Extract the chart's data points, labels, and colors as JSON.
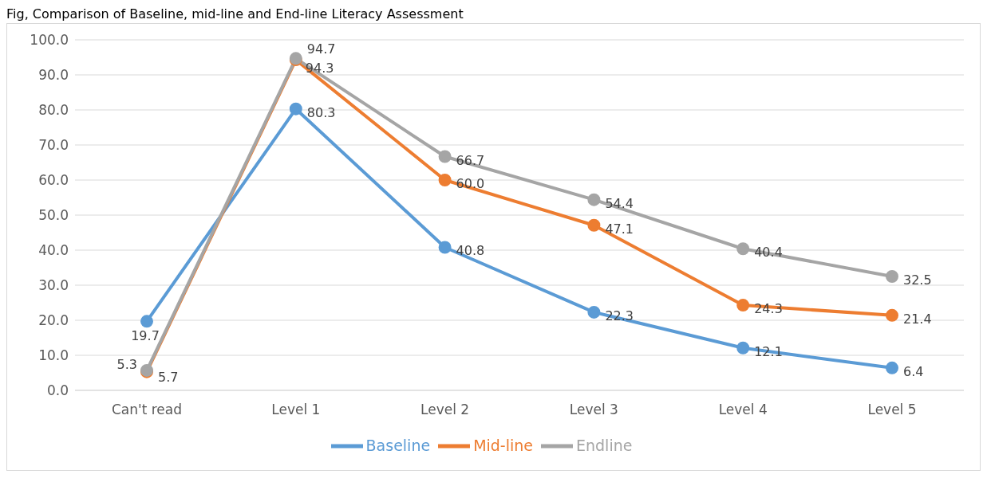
{
  "chart_data": {
    "type": "line",
    "title": "Fig, Comparison of Baseline, mid-line and End-line Literacy Assessment",
    "categories": [
      "Can't read",
      "Level 1",
      "Level 2",
      "Level 3",
      "Level 4",
      "Level 5"
    ],
    "series": [
      {
        "name": "Baseline",
        "color": "#5b9bd5",
        "values": [
          19.7,
          80.3,
          40.8,
          22.3,
          12.1,
          6.4
        ],
        "value_labels": [
          "19.7",
          "80.3",
          "40.8",
          "22.3",
          "12.1",
          "6.4"
        ]
      },
      {
        "name": "Mid-line",
        "color": "#ed7d31",
        "values": [
          5.3,
          94.3,
          60.0,
          47.1,
          24.3,
          21.4
        ],
        "value_labels": [
          "5.3",
          "94.3",
          "60.0",
          "47.1",
          "24.3",
          "21.4"
        ]
      },
      {
        "name": "Endline",
        "color": "#a5a5a5",
        "values": [
          5.7,
          94.7,
          66.7,
          54.4,
          40.4,
          32.5
        ],
        "value_labels": [
          "5.7",
          "94.7",
          "66.7",
          "54.4",
          "40.4",
          "32.5"
        ]
      }
    ],
    "ylim": [
      0,
      100
    ],
    "yticks": [
      {
        "value": 0,
        "label": "0.0"
      },
      {
        "value": 10,
        "label": "10.0"
      },
      {
        "value": 20,
        "label": "20.0"
      },
      {
        "value": 30,
        "label": "30.0"
      },
      {
        "value": 40,
        "label": "40.0"
      },
      {
        "value": 50,
        "label": "50.0"
      },
      {
        "value": 60,
        "label": "60.0"
      },
      {
        "value": 70,
        "label": "70.0"
      },
      {
        "value": 80,
        "label": "80.0"
      },
      {
        "value": 90,
        "label": "90.0"
      },
      {
        "value": 100,
        "label": "100.0"
      }
    ],
    "grid": "y",
    "legend": "bottom",
    "marker": "circle",
    "line_style": "solid"
  }
}
